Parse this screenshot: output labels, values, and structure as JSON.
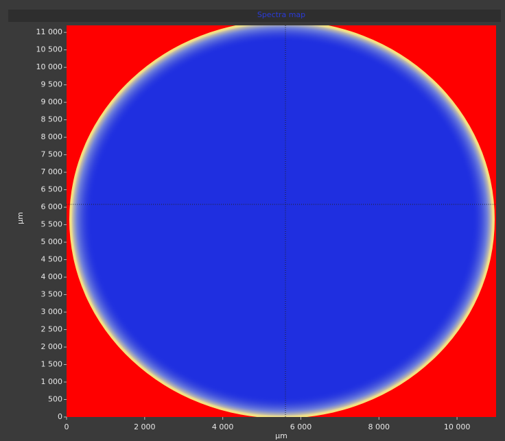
{
  "chart_data": {
    "type": "heatmap",
    "title": "Spectra map",
    "x_label": "µm",
    "y_label": "µm",
    "xlim": [
      0,
      11000
    ],
    "xticks": [
      0,
      {
        "value": 2000,
        "label": "2 000"
      },
      {
        "value": 4000,
        "label": "4 000"
      },
      {
        "value": 6000,
        "label": "6 000"
      },
      {
        "value": 8000,
        "label": "8 000"
      },
      {
        "value": 10000,
        "label": "10 000"
      }
    ],
    "ylim": [
      0,
      11200
    ],
    "yticks": [
      0,
      500,
      {
        "value": 1000,
        "label": "1 000"
      },
      {
        "value": 1500,
        "label": "1 500"
      },
      {
        "value": 2000,
        "label": "2 000"
      },
      {
        "value": 2500,
        "label": "2 500"
      },
      {
        "value": 3000,
        "label": "3 000"
      },
      {
        "value": 3500,
        "label": "3 500"
      },
      {
        "value": 4000,
        "label": "4 000"
      },
      {
        "value": 4500,
        "label": "4 500"
      },
      {
        "value": 5000,
        "label": "5 000"
      },
      {
        "value": 5500,
        "label": "5 500"
      },
      {
        "value": 6000,
        "label": "6 000"
      },
      {
        "value": 6500,
        "label": "6 500"
      },
      {
        "value": 7000,
        "label": "7 000"
      },
      {
        "value": 7500,
        "label": "7 500"
      },
      {
        "value": 8000,
        "label": "8 000"
      },
      {
        "value": 8500,
        "label": "8 500"
      },
      {
        "value": 9000,
        "label": "9 000"
      },
      {
        "value": 9500,
        "label": "9 500"
      },
      {
        "value": 10000,
        "label": "10 000"
      },
      {
        "value": 10500,
        "label": "10 500"
      },
      {
        "value": 11000,
        "label": "11 000"
      }
    ]
  }
}
